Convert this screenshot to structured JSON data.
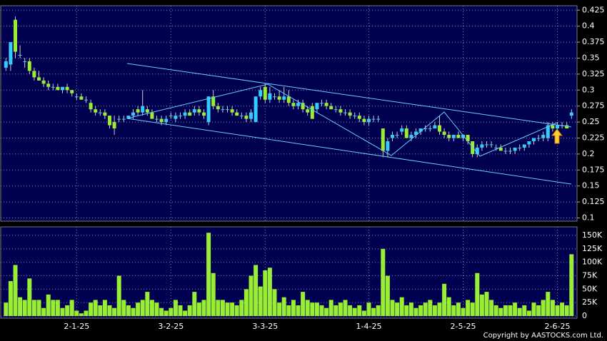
{
  "chart_data": {
    "type": "candlestick",
    "categories": [
      null,
      null,
      null,
      null,
      null,
      null,
      null,
      null,
      null,
      null,
      null,
      null,
      null,
      null,
      null,
      "2-1-25",
      null,
      null,
      null,
      null,
      null,
      null,
      null,
      null,
      null,
      null,
      null,
      null,
      null,
      null,
      null,
      null,
      null,
      null,
      null,
      "3-2-25",
      null,
      null,
      null,
      null,
      null,
      null,
      null,
      null,
      null,
      null,
      null,
      null,
      null,
      null,
      null,
      null,
      null,
      null,
      null,
      "3-3-25",
      null,
      null,
      null,
      null,
      null,
      null,
      null,
      null,
      null,
      null,
      null,
      null,
      null,
      null,
      null,
      null,
      null,
      null,
      null,
      null,
      null,
      "1-4-25",
      null,
      null,
      null,
      null,
      null,
      null,
      null,
      null,
      null,
      null,
      null,
      null,
      null,
      null,
      null,
      null,
      null,
      null,
      null,
      "2-5-25",
      null,
      null,
      null,
      null,
      null,
      null,
      null,
      null,
      null,
      null,
      null,
      null,
      null,
      null,
      null,
      null,
      null,
      null,
      null,
      "2-6-25",
      null,
      null,
      null
    ],
    "candles": [
      [
        0.335,
        0.35,
        0.33,
        0.345
      ],
      [
        0.34,
        0.375,
        0.33,
        0.375
      ],
      [
        0.41,
        0.415,
        0.35,
        0.36
      ],
      [
        0.355,
        0.37,
        0.35,
        0.355
      ],
      [
        0.345,
        0.35,
        0.335,
        0.345
      ],
      [
        0.345,
        0.35,
        0.325,
        0.33
      ],
      [
        0.33,
        0.335,
        0.315,
        0.32
      ],
      [
        0.32,
        0.33,
        0.315,
        0.315
      ],
      [
        0.315,
        0.32,
        0.305,
        0.31
      ],
      [
        0.31,
        0.315,
        0.3,
        0.305
      ],
      [
        0.305,
        0.31,
        0.3,
        0.305
      ],
      [
        0.305,
        0.31,
        0.3,
        0.3
      ],
      [
        0.3,
        0.305,
        0.295,
        0.305
      ],
      [
        0.305,
        0.31,
        0.295,
        0.3
      ],
      [
        0.3,
        0.3,
        0.29,
        0.295
      ],
      [
        0.29,
        0.295,
        0.285,
        0.29
      ],
      [
        0.29,
        0.295,
        0.285,
        0.285
      ],
      [
        0.285,
        0.29,
        0.28,
        0.285
      ],
      [
        0.28,
        0.285,
        0.265,
        0.27
      ],
      [
        0.27,
        0.275,
        0.26,
        0.265
      ],
      [
        0.265,
        0.27,
        0.26,
        0.265
      ],
      [
        0.265,
        0.27,
        0.255,
        0.26
      ],
      [
        0.26,
        0.26,
        0.24,
        0.245
      ],
      [
        0.25,
        0.26,
        0.23,
        0.24
      ],
      [
        0.255,
        0.26,
        0.25,
        0.255
      ],
      [
        0.255,
        0.26,
        0.25,
        0.255
      ],
      [
        0.255,
        0.26,
        0.255,
        0.26
      ],
      [
        0.26,
        0.27,
        0.255,
        0.265
      ],
      [
        0.27,
        0.275,
        0.26,
        0.265
      ],
      [
        0.265,
        0.3,
        0.26,
        0.275
      ],
      [
        0.27,
        0.275,
        0.26,
        0.265
      ],
      [
        0.265,
        0.27,
        0.255,
        0.255
      ],
      [
        0.255,
        0.26,
        0.25,
        0.255
      ],
      [
        0.255,
        0.26,
        0.245,
        0.25
      ],
      [
        0.25,
        0.26,
        0.245,
        0.255
      ],
      [
        0.26,
        0.265,
        0.255,
        0.26
      ],
      [
        0.255,
        0.265,
        0.25,
        0.26
      ],
      [
        0.26,
        0.265,
        0.255,
        0.26
      ],
      [
        0.26,
        0.27,
        0.255,
        0.265
      ],
      [
        0.265,
        0.27,
        0.26,
        0.26
      ],
      [
        0.265,
        0.275,
        0.26,
        0.27
      ],
      [
        0.27,
        0.275,
        0.26,
        0.265
      ],
      [
        0.265,
        0.27,
        0.255,
        0.26
      ],
      [
        0.25,
        0.29,
        0.245,
        0.29
      ],
      [
        0.29,
        0.3,
        0.27,
        0.275
      ],
      [
        0.275,
        0.28,
        0.265,
        0.27
      ],
      [
        0.27,
        0.275,
        0.265,
        0.27
      ],
      [
        0.27,
        0.275,
        0.265,
        0.27
      ],
      [
        0.27,
        0.275,
        0.26,
        0.265
      ],
      [
        0.265,
        0.27,
        0.26,
        0.26
      ],
      [
        0.26,
        0.265,
        0.255,
        0.26
      ],
      [
        0.26,
        0.265,
        0.25,
        0.255
      ],
      [
        0.255,
        0.27,
        0.25,
        0.265
      ],
      [
        0.25,
        0.29,
        0.25,
        0.29
      ],
      [
        0.29,
        0.305,
        0.285,
        0.3
      ],
      [
        0.305,
        0.31,
        0.28,
        0.285
      ],
      [
        0.285,
        0.305,
        0.28,
        0.295
      ],
      [
        0.29,
        0.295,
        0.285,
        0.29
      ],
      [
        0.29,
        0.3,
        0.28,
        0.285
      ],
      [
        0.285,
        0.305,
        0.28,
        0.29
      ],
      [
        0.29,
        0.3,
        0.275,
        0.28
      ],
      [
        0.28,
        0.285,
        0.27,
        0.275
      ],
      [
        0.275,
        0.285,
        0.27,
        0.28
      ],
      [
        0.28,
        0.285,
        0.265,
        0.27
      ],
      [
        0.27,
        0.275,
        0.26,
        0.265
      ],
      [
        0.275,
        0.28,
        0.255,
        0.255
      ],
      [
        0.27,
        0.28,
        0.265,
        0.28
      ],
      [
        0.28,
        0.285,
        0.275,
        0.28
      ],
      [
        0.28,
        0.285,
        0.27,
        0.275
      ],
      [
        0.275,
        0.28,
        0.27,
        0.27
      ],
      [
        0.27,
        0.275,
        0.265,
        0.27
      ],
      [
        0.27,
        0.275,
        0.26,
        0.265
      ],
      [
        0.265,
        0.27,
        0.26,
        0.265
      ],
      [
        0.265,
        0.27,
        0.255,
        0.26
      ],
      [
        0.26,
        0.265,
        0.255,
        0.26
      ],
      [
        0.26,
        0.265,
        0.25,
        0.255
      ],
      [
        0.255,
        0.26,
        0.245,
        0.25
      ],
      [
        0.25,
        0.26,
        0.245,
        0.255
      ],
      [
        0.255,
        0.26,
        0.25,
        0.255
      ],
      [
        0.255,
        0.26,
        0.25,
        0.255
      ],
      [
        0.24,
        0.24,
        0.195,
        0.205
      ],
      [
        0.205,
        0.225,
        0.195,
        0.22
      ],
      [
        0.225,
        0.235,
        0.22,
        0.23
      ],
      [
        0.23,
        0.235,
        0.225,
        0.23
      ],
      [
        0.235,
        0.245,
        0.23,
        0.24
      ],
      [
        0.24,
        0.245,
        0.225,
        0.225
      ],
      [
        0.225,
        0.235,
        0.22,
        0.23
      ],
      [
        0.23,
        0.24,
        0.225,
        0.235
      ],
      [
        0.235,
        0.24,
        0.23,
        0.24
      ],
      [
        0.24,
        0.245,
        0.235,
        0.24
      ],
      [
        0.24,
        0.245,
        0.235,
        0.24
      ],
      [
        0.24,
        0.25,
        0.24,
        0.245
      ],
      [
        0.245,
        0.26,
        0.23,
        0.235
      ],
      [
        0.235,
        0.24,
        0.225,
        0.23
      ],
      [
        0.23,
        0.235,
        0.22,
        0.225
      ],
      [
        0.225,
        0.23,
        0.22,
        0.23
      ],
      [
        0.23,
        0.235,
        0.225,
        0.225
      ],
      [
        0.225,
        0.23,
        0.22,
        0.23
      ],
      [
        0.23,
        0.23,
        0.215,
        0.22
      ],
      [
        0.22,
        0.22,
        0.195,
        0.2
      ],
      [
        0.2,
        0.215,
        0.195,
        0.21
      ],
      [
        0.21,
        0.22,
        0.205,
        0.215
      ],
      [
        0.215,
        0.22,
        0.21,
        0.215
      ],
      [
        0.215,
        0.22,
        0.21,
        0.215
      ],
      [
        0.21,
        0.215,
        0.205,
        0.21
      ],
      [
        0.21,
        0.215,
        0.205,
        0.205
      ],
      [
        0.205,
        0.21,
        0.2,
        0.205
      ],
      [
        0.205,
        0.21,
        0.2,
        0.205
      ],
      [
        0.205,
        0.21,
        0.2,
        0.21
      ],
      [
        0.21,
        0.215,
        0.205,
        0.21
      ],
      [
        0.21,
        0.215,
        0.205,
        0.215
      ],
      [
        0.215,
        0.22,
        0.21,
        0.22
      ],
      [
        0.22,
        0.225,
        0.215,
        0.225
      ],
      [
        0.225,
        0.23,
        0.22,
        0.225
      ],
      [
        0.225,
        0.235,
        0.22,
        0.23
      ],
      [
        0.225,
        0.25,
        0.22,
        0.245
      ],
      [
        0.245,
        0.25,
        0.235,
        0.24
      ],
      [
        0.24,
        0.25,
        0.235,
        0.245
      ],
      [
        0.245,
        0.25,
        0.24,
        0.245
      ],
      [
        0.245,
        0.25,
        0.24,
        0.24
      ],
      [
        0.26,
        0.27,
        0.255,
        0.265
      ]
    ],
    "up_color": "#33ccff",
    "down_color": "#99ee33",
    "ylim": [
      0.095,
      0.432
    ],
    "yticks": [
      0.1,
      0.125,
      0.15,
      0.175,
      0.2,
      0.225,
      0.25,
      0.275,
      0.3,
      0.325,
      0.35,
      0.375,
      0.4,
      0.425
    ],
    "grid": true,
    "volume": {
      "color": "#99ee33",
      "ylim": [
        0,
        166000
      ],
      "yticks": [
        0,
        {
          "value": 25000,
          "label": "25K"
        },
        {
          "value": 50000,
          "label": "50K"
        },
        {
          "value": 75000,
          "label": "75K"
        },
        {
          "value": 100000,
          "label": "100K"
        },
        {
          "value": 125000,
          "label": "125K"
        },
        {
          "value": 150000,
          "label": "150K"
        }
      ],
      "values": [
        25000,
        65000,
        95000,
        35000,
        30000,
        70000,
        30000,
        30000,
        15000,
        40000,
        30000,
        30000,
        15000,
        20000,
        30000,
        10000,
        5000,
        10000,
        25000,
        30000,
        20000,
        30000,
        20000,
        15000,
        75000,
        30000,
        20000,
        15000,
        25000,
        30000,
        45000,
        30000,
        25000,
        15000,
        10000,
        15000,
        30000,
        20000,
        10000,
        20000,
        45000,
        25000,
        30000,
        155000,
        80000,
        30000,
        30000,
        25000,
        25000,
        20000,
        30000,
        50000,
        75000,
        95000,
        55000,
        85000,
        90000,
        50000,
        25000,
        35000,
        20000,
        30000,
        20000,
        45000,
        30000,
        25000,
        25000,
        20000,
        15000,
        30000,
        20000,
        25000,
        30000,
        20000,
        15000,
        20000,
        10000,
        25000,
        15000,
        20000,
        125000,
        75000,
        30000,
        25000,
        35000,
        20000,
        25000,
        15000,
        20000,
        25000,
        30000,
        20000,
        25000,
        60000,
        35000,
        20000,
        25000,
        15000,
        30000,
        25000,
        80000,
        40000,
        45000,
        30000,
        20000,
        15000,
        20000,
        20000,
        25000,
        15000,
        20000,
        10000,
        25000,
        20000,
        30000,
        45000,
        30000,
        20000,
        25000,
        20000,
        115000
      ]
    },
    "copyright": "Copyright by AASTOCKS.com Ltd."
  }
}
